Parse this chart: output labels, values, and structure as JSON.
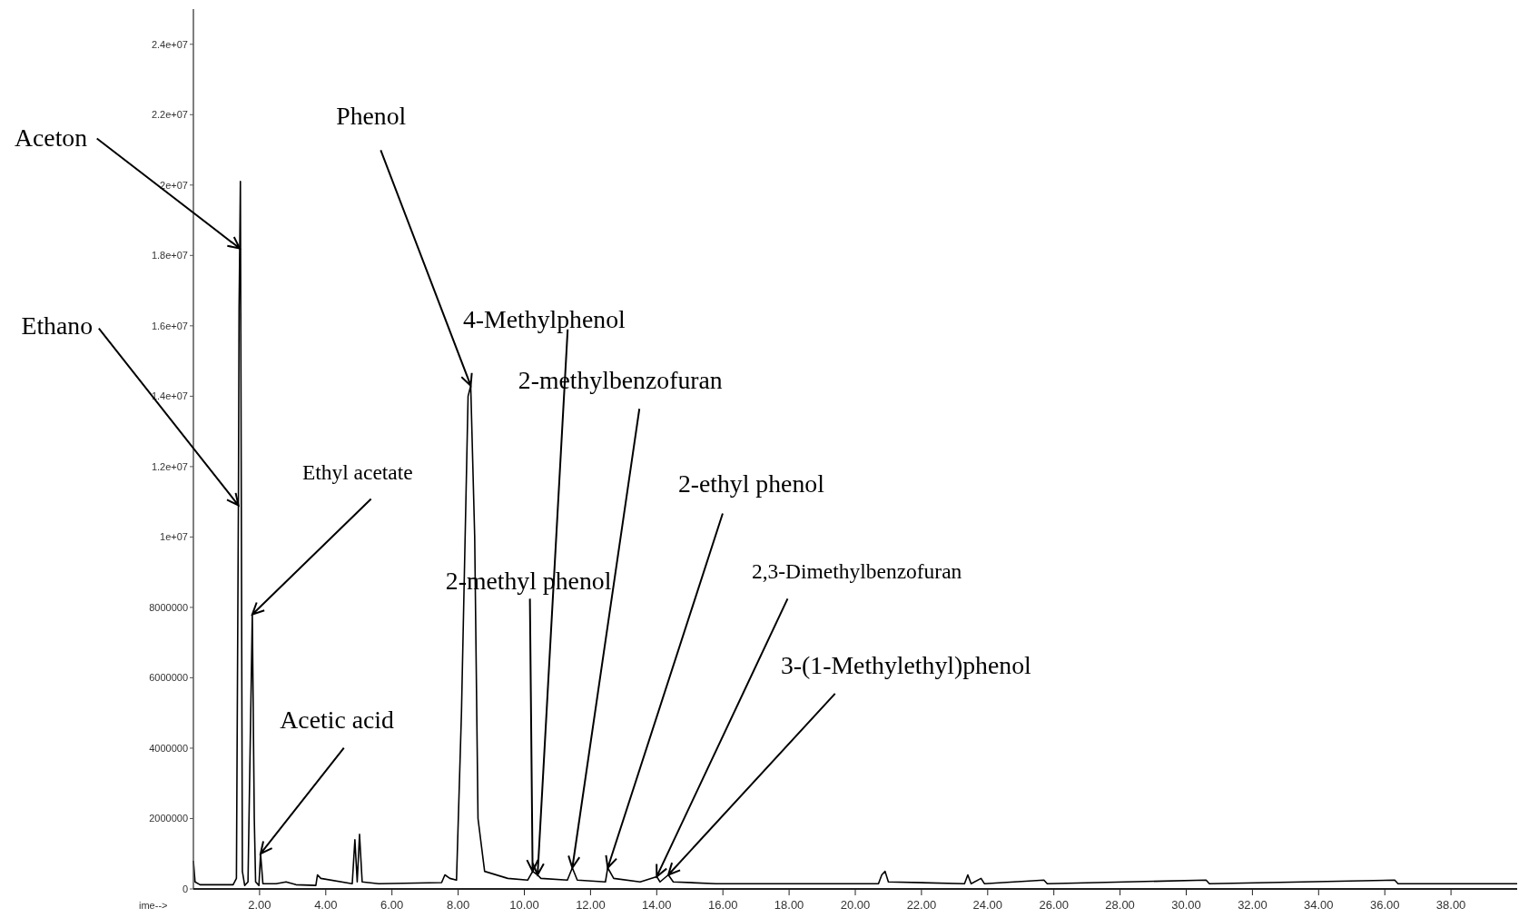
{
  "chart_data": {
    "type": "line",
    "xlabel": "ime-->",
    "xlim": [
      0,
      40
    ],
    "ylim": [
      0,
      25000000
    ],
    "xticks": [
      {
        "value": 2,
        "label": "2.00"
      },
      {
        "value": 4,
        "label": "4.00"
      },
      {
        "value": 6,
        "label": "6.00"
      },
      {
        "value": 8,
        "label": "8.00"
      },
      {
        "value": 10,
        "label": "10.00"
      },
      {
        "value": 12,
        "label": "12.00"
      },
      {
        "value": 14,
        "label": "14.00"
      },
      {
        "value": 16,
        "label": "16.00"
      },
      {
        "value": 18,
        "label": "18.00"
      },
      {
        "value": 20,
        "label": "20.00"
      },
      {
        "value": 22,
        "label": "22.00"
      },
      {
        "value": 24,
        "label": "24.00"
      },
      {
        "value": 26,
        "label": "26.00"
      },
      {
        "value": 28,
        "label": "28.00"
      },
      {
        "value": 30,
        "label": "30.00"
      },
      {
        "value": 32,
        "label": "32.00"
      },
      {
        "value": 34,
        "label": "34.00"
      },
      {
        "value": 36,
        "label": "36.00"
      },
      {
        "value": 38,
        "label": "38.00"
      }
    ],
    "yticks": [
      0,
      2000000,
      4000000,
      6000000,
      8000000,
      {
        "value": 10000000,
        "label": "1e+07"
      },
      {
        "value": 12000000,
        "label": "1.2e+07"
      },
      {
        "value": 14000000,
        "label": "1.4e+07"
      },
      {
        "value": 16000000,
        "label": "1.6e+07"
      },
      {
        "value": 18000000,
        "label": "1.8e+07"
      },
      {
        "value": 20000000,
        "label": "2e+07"
      },
      {
        "value": 22000000,
        "label": "2.2e+07"
      },
      {
        "value": 24000000,
        "label": "2.4e+07"
      }
    ],
    "grid": false,
    "marker": "none",
    "line_style": "solid",
    "series": [
      {
        "color": "#000000",
        "x": [
          0,
          0.05,
          0.2,
          1.2,
          1.3,
          1.36,
          1.38,
          1.4,
          1.42,
          1.48,
          1.55,
          1.65,
          1.78,
          1.84,
          1.88,
          1.98,
          2.03,
          2.1,
          2.5,
          2.8,
          3.1,
          3.7,
          3.75,
          3.85,
          4.8,
          4.88,
          4.95,
          5.02,
          5.1,
          5.6,
          7.5,
          7.6,
          7.75,
          7.95,
          8.1,
          8.3,
          8.38,
          8.5,
          8.6,
          8.8,
          9.5,
          10.1,
          10.25,
          10.4,
          10.5,
          11.3,
          11.45,
          11.6,
          12.45,
          12.52,
          12.7,
          13.5,
          14,
          14.1,
          14.35,
          14.5,
          15.8,
          20.7,
          20.8,
          20.9,
          21,
          23.3,
          23.4,
          23.5,
          23.8,
          23.9,
          25.7,
          25.8,
          30.6,
          30.7,
          36.3,
          36.4,
          40
        ],
        "values": [
          800000,
          200000,
          120000,
          120000,
          300000,
          10900000,
          16500000,
          18200000,
          20100000,
          500000,
          100000,
          200000,
          7800000,
          2000000,
          200000,
          100000,
          1000000,
          150000,
          150000,
          200000,
          120000,
          100000,
          400000,
          300000,
          150000,
          1400000,
          200000,
          1550000,
          200000,
          150000,
          180000,
          400000,
          300000,
          250000,
          5000000,
          14000000,
          14300000,
          10000000,
          2000000,
          500000,
          300000,
          250000,
          500000,
          400000,
          300000,
          250000,
          600000,
          250000,
          200000,
          600000,
          300000,
          200000,
          350000,
          200000,
          400000,
          200000,
          150000,
          150000,
          400000,
          500000,
          200000,
          150000,
          400000,
          150000,
          300000,
          150000,
          250000,
          150000,
          250000,
          150000,
          250000,
          150000,
          150000
        ]
      }
    ],
    "annotations": [
      {
        "text": "Aceton",
        "x": 1.4,
        "y": 18200000
      },
      {
        "text": "Ethano",
        "x": 1.36,
        "y": 10900000
      },
      {
        "text": "Phenol",
        "x": 8.38,
        "y": 14300000
      },
      {
        "text": "Ethyl acetate",
        "x": 1.78,
        "y": 7800000
      },
      {
        "text": "Acetic acid",
        "x": 2.03,
        "y": 1000000
      },
      {
        "text": "4-Methylphenol",
        "x": 10.4,
        "y": 400000
      },
      {
        "text": "2-methylbenzofuran",
        "x": 11.45,
        "y": 600000
      },
      {
        "text": "2-methyl phenol",
        "x": 10.25,
        "y": 500000
      },
      {
        "text": "2-ethyl phenol",
        "x": 12.52,
        "y": 600000
      },
      {
        "text": "2,3-Dimethylbenzofuran",
        "x": 14,
        "y": 350000
      },
      {
        "text": "3-(1-Methylethyl)phenol",
        "x": 14.35,
        "y": 400000
      }
    ]
  }
}
